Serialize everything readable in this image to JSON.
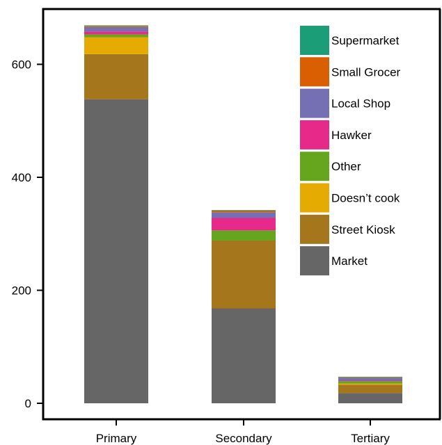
{
  "chart_data": {
    "type": "bar",
    "stacked": true,
    "title": "",
    "xlabel": "",
    "ylabel": "",
    "ylim": [
      0,
      680
    ],
    "yticks": [
      0,
      200,
      400,
      600
    ],
    "grid": false,
    "legend_position": "top-right",
    "categories": [
      "Primary",
      "Secondary",
      "Tertiary"
    ],
    "series": [
      {
        "name": "Market",
        "color": "#666666",
        "values": [
          538,
          168,
          18
        ]
      },
      {
        "name": "Street Kiosk",
        "color": "#A6761D",
        "values": [
          80,
          120,
          15
        ]
      },
      {
        "name": "Doesn’t cook",
        "color": "#E6AB02",
        "values": [
          30,
          0,
          2
        ]
      },
      {
        "name": "Other",
        "color": "#66A61E",
        "values": [
          5,
          18,
          4
        ]
      },
      {
        "name": "Hawker",
        "color": "#E7298A",
        "values": [
          5,
          22,
          1
        ]
      },
      {
        "name": "Local Shop",
        "color": "#7570B3",
        "values": [
          8,
          10,
          5
        ]
      },
      {
        "name": "Small Grocer",
        "color": "#D95F02",
        "values": [
          2,
          3,
          1
        ]
      },
      {
        "name": "Supermarket",
        "color": "#1B9E77",
        "values": [
          1,
          1,
          1
        ]
      }
    ]
  }
}
